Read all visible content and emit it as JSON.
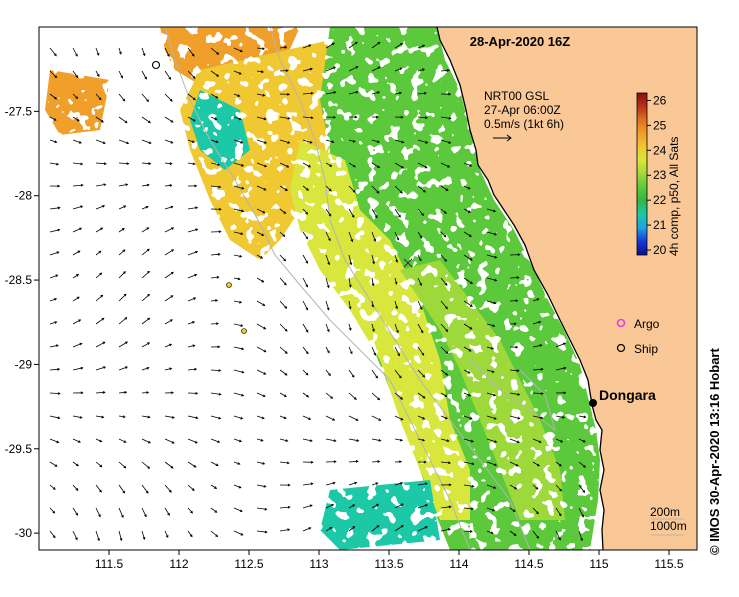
{
  "title": "28-Apr-2020 16Z",
  "vector_note": {
    "line1": "NRT00 GSL",
    "line2": "27-Apr 06:00Z",
    "line3": "0.5m/s (1kt 6h)"
  },
  "colorbar": {
    "label": "4h comp, p50, All Sats",
    "ticks": [
      "26",
      "25",
      "24",
      "23",
      "22",
      "21",
      "20"
    ],
    "min": 19.8,
    "max": 26.3,
    "colors": [
      "#0b0f8a",
      "#1538d6",
      "#1fa0e6",
      "#1ec8a6",
      "#2fb64a",
      "#5cc83a",
      "#9ed93a",
      "#d9e63c",
      "#f0c832",
      "#f0a02a",
      "#e07020",
      "#b83018",
      "#8a1010"
    ]
  },
  "legend": {
    "argo": "Argo",
    "ship": "Ship",
    "argo_color": "#e040e0"
  },
  "place": {
    "name": "Dongara",
    "lon": 114.93,
    "lat": -29.25
  },
  "contours": {
    "label1": "200m",
    "label2": "1000m"
  },
  "credit": "© IMOS 30-Apr-2020 13:16 Hobart",
  "axes": {
    "lon_ticks": [
      "111.5",
      "112",
      "112.5",
      "113",
      "113.5",
      "114",
      "114.5",
      "115",
      "115.5"
    ],
    "lat_ticks": [
      "-27.5",
      "-28",
      "-28.5",
      "-29",
      "-29.5",
      "-30"
    ],
    "lon_range": [
      111.0,
      115.7
    ],
    "lat_range": [
      -30.1,
      -27.0
    ]
  },
  "colors": {
    "land": "#fac896",
    "coast": "#000000",
    "bathy": "#b4b4b4"
  }
}
